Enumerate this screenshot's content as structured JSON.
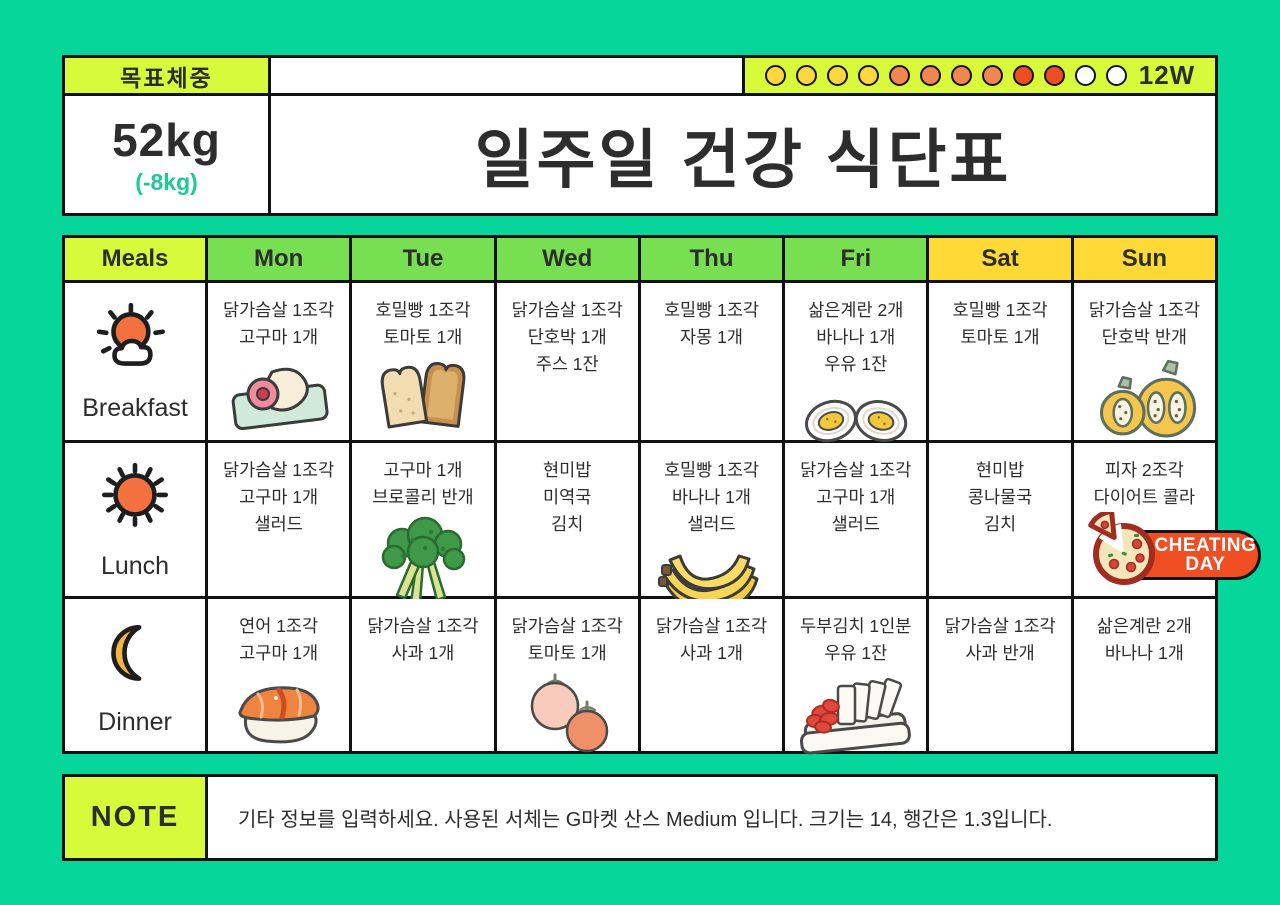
{
  "header": {
    "target_weight_label": "목표체중",
    "weight_value": "52kg",
    "weight_delta": "(-8kg)",
    "title": "일주일 건강 식단표",
    "tracker": {
      "weeks_label": "12W",
      "dot_colors": [
        "#FFD640",
        "#FFD640",
        "#FFD640",
        "#FFD640",
        "#F08650",
        "#F08650",
        "#F08650",
        "#F08650",
        "#EE4D24",
        "#EE4D24",
        "#FFFFFF",
        "#FFFFFF"
      ]
    }
  },
  "table": {
    "columns": [
      {
        "label": "Meals",
        "type": "meals"
      },
      {
        "label": "Mon",
        "type": "weekday"
      },
      {
        "label": "Tue",
        "type": "weekday"
      },
      {
        "label": "Wed",
        "type": "weekday"
      },
      {
        "label": "Thu",
        "type": "weekday"
      },
      {
        "label": "Fri",
        "type": "weekday"
      },
      {
        "label": "Sat",
        "type": "weekend"
      },
      {
        "label": "Sun",
        "type": "weekend"
      }
    ],
    "rows": [
      {
        "meal_label": "Breakfast",
        "meal_icon": "sun-cloud-icon",
        "cells": [
          {
            "lines": [
              "닭가슴살 1조각",
              "고구마 1개"
            ],
            "illustration": "chicken-breast"
          },
          {
            "lines": [
              "호밀빵 1조각",
              "토마토 1개"
            ],
            "illustration": "bread"
          },
          {
            "lines": [
              "닭가슴살 1조각",
              "단호박 1개",
              "주스 1잔"
            ]
          },
          {
            "lines": [
              "호밀빵 1조각",
              "자몽 1개"
            ]
          },
          {
            "lines": [
              "삶은계란 2개",
              "바나나 1개",
              "우유 1잔"
            ],
            "illustration": "boiled-eggs"
          },
          {
            "lines": [
              "호밀빵 1조각",
              "토마토 1개"
            ]
          },
          {
            "lines": [
              "닭가슴살 1조각",
              "단호박 반개"
            ],
            "illustration": "pumpkin"
          }
        ]
      },
      {
        "meal_label": "Lunch",
        "meal_icon": "sun-icon",
        "cells": [
          {
            "lines": [
              "닭가슴살 1조각",
              "고구마 1개",
              "샐러드"
            ]
          },
          {
            "lines": [
              "고구마 1개",
              "브로콜리 반개"
            ],
            "illustration": "broccoli"
          },
          {
            "lines": [
              "현미밥",
              "미역국",
              "김치"
            ]
          },
          {
            "lines": [
              "호밀빵 1조각",
              "바나나 1개",
              "샐러드"
            ],
            "illustration": "bananas"
          },
          {
            "lines": [
              "닭가슴살 1조각",
              "고구마 1개",
              "샐러드"
            ]
          },
          {
            "lines": [
              "현미밥",
              "콩나물국",
              "김치"
            ]
          },
          {
            "lines": [
              "피자 2조각",
              "다이어트 콜라"
            ],
            "illustration": "pizza",
            "badge": true
          }
        ]
      },
      {
        "meal_label": "Dinner",
        "meal_icon": "moon-icon",
        "cells": [
          {
            "lines": [
              "연어 1조각",
              "고구마 1개"
            ],
            "illustration": "salmon"
          },
          {
            "lines": [
              "닭가슴살 1조각",
              "사과 1개"
            ]
          },
          {
            "lines": [
              "닭가슴살 1조각",
              "토마토 1개"
            ],
            "illustration": "tomatoes"
          },
          {
            "lines": [
              "닭가슴살 1조각",
              "사과 1개"
            ]
          },
          {
            "lines": [
              "두부김치 1인분",
              "우유 1잔"
            ],
            "illustration": "tofu-kimchi"
          },
          {
            "lines": [
              "닭가슴살 1조각",
              "사과 반개"
            ]
          },
          {
            "lines": [
              "삶은계란 2개",
              "바나나 1개"
            ]
          }
        ]
      }
    ]
  },
  "cheating_badge": {
    "line1": "CHEATING",
    "line2": "DAY"
  },
  "note": {
    "label": "NOTE",
    "text": "기타 정보를 입력하세요. 사용된 서체는 G마켓 산스 Medium 입니다. 크기는 14, 행간은 1.3입니다."
  },
  "colors": {
    "background": "#07D69B",
    "lime": "#D9F93B",
    "weekday_green": "#79DF52",
    "weekend_yellow": "#FFD935",
    "badge_orange": "#F04E23",
    "weight_delta_green": "#1EC998"
  }
}
